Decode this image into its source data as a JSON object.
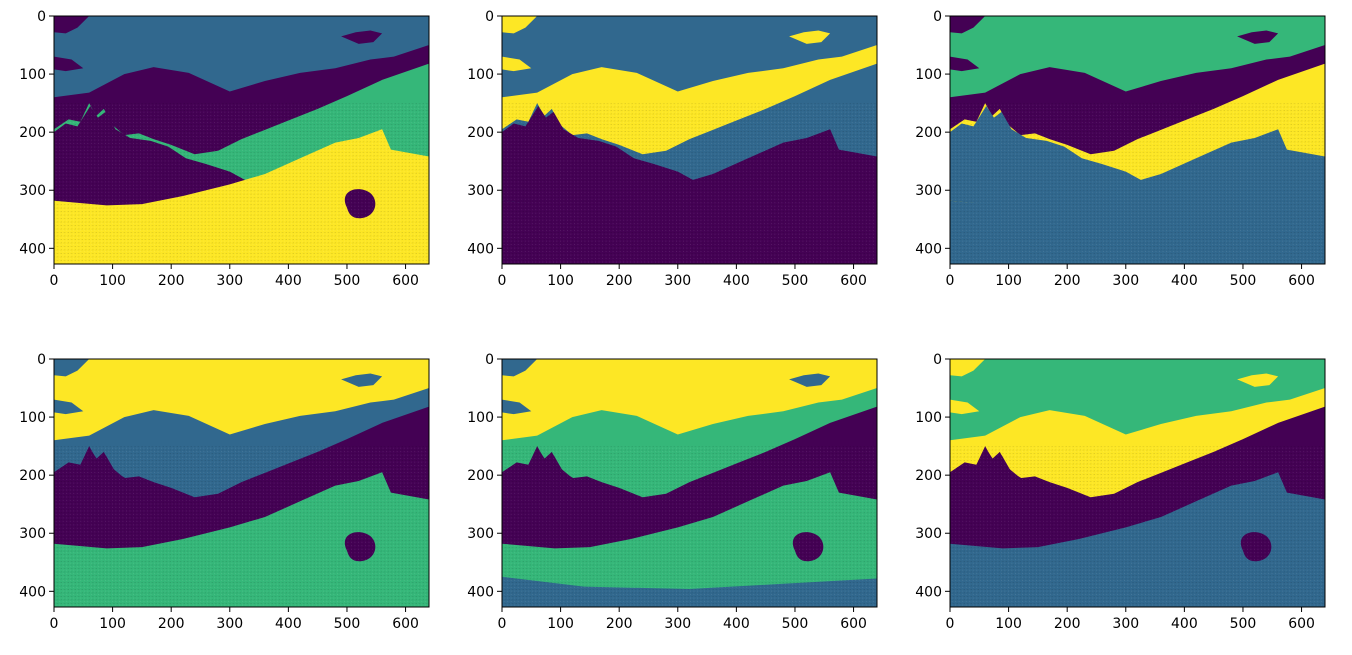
{
  "figure": {
    "layout": "2 rows x 3 columns of image subplots",
    "colormap": {
      "name": "viridis",
      "levels": [
        "#440154",
        "#31688e",
        "#35b779",
        "#fde725"
      ]
    }
  },
  "chart_data": [
    {
      "type": "heatmap",
      "panel": "row1-col1",
      "xlim": [
        0,
        640
      ],
      "ylim": [
        427,
        0
      ],
      "xticks": [
        0,
        100,
        200,
        300,
        400,
        500,
        600
      ],
      "yticks": [
        0,
        100,
        200,
        300,
        400
      ],
      "regions": {
        "sky": "#31688e",
        "mountains": "#440154",
        "trees": "#35b779",
        "meadow": "#fde725",
        "foreground": "#fde725",
        "clouds": "#440154",
        "treeshade": "#440154"
      }
    },
    {
      "type": "heatmap",
      "panel": "row1-col2",
      "xlim": [
        0,
        640
      ],
      "ylim": [
        427,
        0
      ],
      "xticks": [
        0,
        100,
        200,
        300,
        400,
        500,
        600
      ],
      "yticks": [
        0,
        100,
        200,
        300,
        400
      ],
      "regions": {
        "sky": "#31688e",
        "mountains": "#fde725",
        "trees": "#31688e",
        "meadow": "#440154",
        "foreground": "#440154",
        "clouds": "#fde725",
        "treeshade": "#440154"
      }
    },
    {
      "type": "heatmap",
      "panel": "row1-col3",
      "xlim": [
        0,
        640
      ],
      "ylim": [
        427,
        0
      ],
      "xticks": [
        0,
        100,
        200,
        300,
        400,
        500,
        600
      ],
      "yticks": [
        0,
        100,
        200,
        300,
        400
      ],
      "regions": {
        "sky": "#35b779",
        "mountains": "#440154",
        "trees": "#fde725",
        "meadow": "#31688e",
        "foreground": "#31688e",
        "clouds": "#440154",
        "treeshade": "#31688e"
      }
    },
    {
      "type": "heatmap",
      "panel": "row2-col1",
      "xlim": [
        0,
        640
      ],
      "ylim": [
        427,
        0
      ],
      "xticks": [
        0,
        100,
        200,
        300,
        400,
        500,
        600
      ],
      "yticks": [
        0,
        100,
        200,
        300,
        400
      ],
      "regions": {
        "sky": "#fde725",
        "mountains": "#31688e",
        "trees": "#440154",
        "meadow": "#35b779",
        "foreground": "#35b779",
        "clouds": "#31688e",
        "treeshade": "#440154"
      }
    },
    {
      "type": "heatmap",
      "panel": "row2-col2",
      "xlim": [
        0,
        640
      ],
      "ylim": [
        427,
        0
      ],
      "xticks": [
        0,
        100,
        200,
        300,
        400,
        500,
        600
      ],
      "yticks": [
        0,
        100,
        200,
        300,
        400
      ],
      "regions": {
        "sky": "#fde725",
        "mountains": "#35b779",
        "trees": "#440154",
        "meadow": "#35b779",
        "foreground": "#31688e",
        "clouds": "#31688e",
        "treeshade": "#440154"
      }
    },
    {
      "type": "heatmap",
      "panel": "row2-col3",
      "xlim": [
        0,
        640
      ],
      "ylim": [
        427,
        0
      ],
      "xticks": [
        0,
        100,
        200,
        300,
        400,
        500,
        600
      ],
      "yticks": [
        0,
        100,
        200,
        300,
        400
      ],
      "regions": {
        "sky": "#35b779",
        "mountains": "#fde725",
        "trees": "#440154",
        "meadow": "#31688e",
        "foreground": "#31688e",
        "clouds": "#fde725",
        "treeshade": "#440154"
      }
    }
  ]
}
